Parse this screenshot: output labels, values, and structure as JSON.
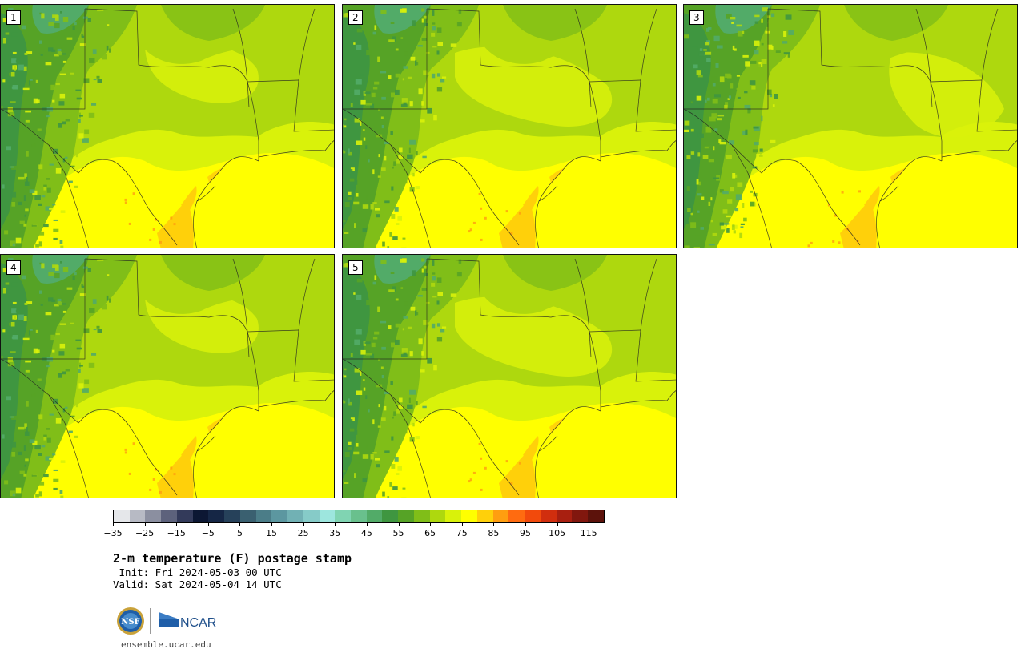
{
  "panels": [
    {
      "label": "1",
      "variant": 0
    },
    {
      "label": "2",
      "variant": 1
    },
    {
      "label": "3",
      "variant": 2
    },
    {
      "label": "4",
      "variant": 0
    },
    {
      "label": "5",
      "variant": 1
    }
  ],
  "colorbar": {
    "colors": [
      "#e5e7ea",
      "#b7bac4",
      "#8b8fa0",
      "#5d627c",
      "#333a5a",
      "#0c1733",
      "#152645",
      "#26415a",
      "#3a6070",
      "#4b7d88",
      "#5c97a0",
      "#71b1b4",
      "#86cbc8",
      "#9de6de",
      "#80d4b2",
      "#69c08d",
      "#52ab68",
      "#3f9640",
      "#56a326",
      "#80be18",
      "#aed80e",
      "#d9f20a",
      "#ffff00",
      "#ffd00a",
      "#ff9e10",
      "#ff6b10",
      "#f24a0c",
      "#d12e0e",
      "#a81f10",
      "#81170e",
      "#5c120b"
    ],
    "tick_values": [
      -35,
      -25,
      -15,
      -5,
      5,
      15,
      25,
      35,
      45,
      55,
      65,
      75,
      85,
      95,
      105,
      115
    ],
    "tick_labels": [
      "−35",
      "−25",
      "−15",
      "−5",
      "5",
      "15",
      "25",
      "35",
      "45",
      "55",
      "65",
      "75",
      "85",
      "95",
      "105",
      "115"
    ],
    "min": -35,
    "max": 120
  },
  "title": "2-m temperature (F) postage stamp",
  "init_line": " Init: Fri 2024-05-03 00 UTC",
  "valid_line": "Valid: Sat 2024-05-04 14 UTC",
  "logos": {
    "nsf": "NSF",
    "ncar": "NCAR"
  },
  "site": "ensemble.ucar.edu"
}
